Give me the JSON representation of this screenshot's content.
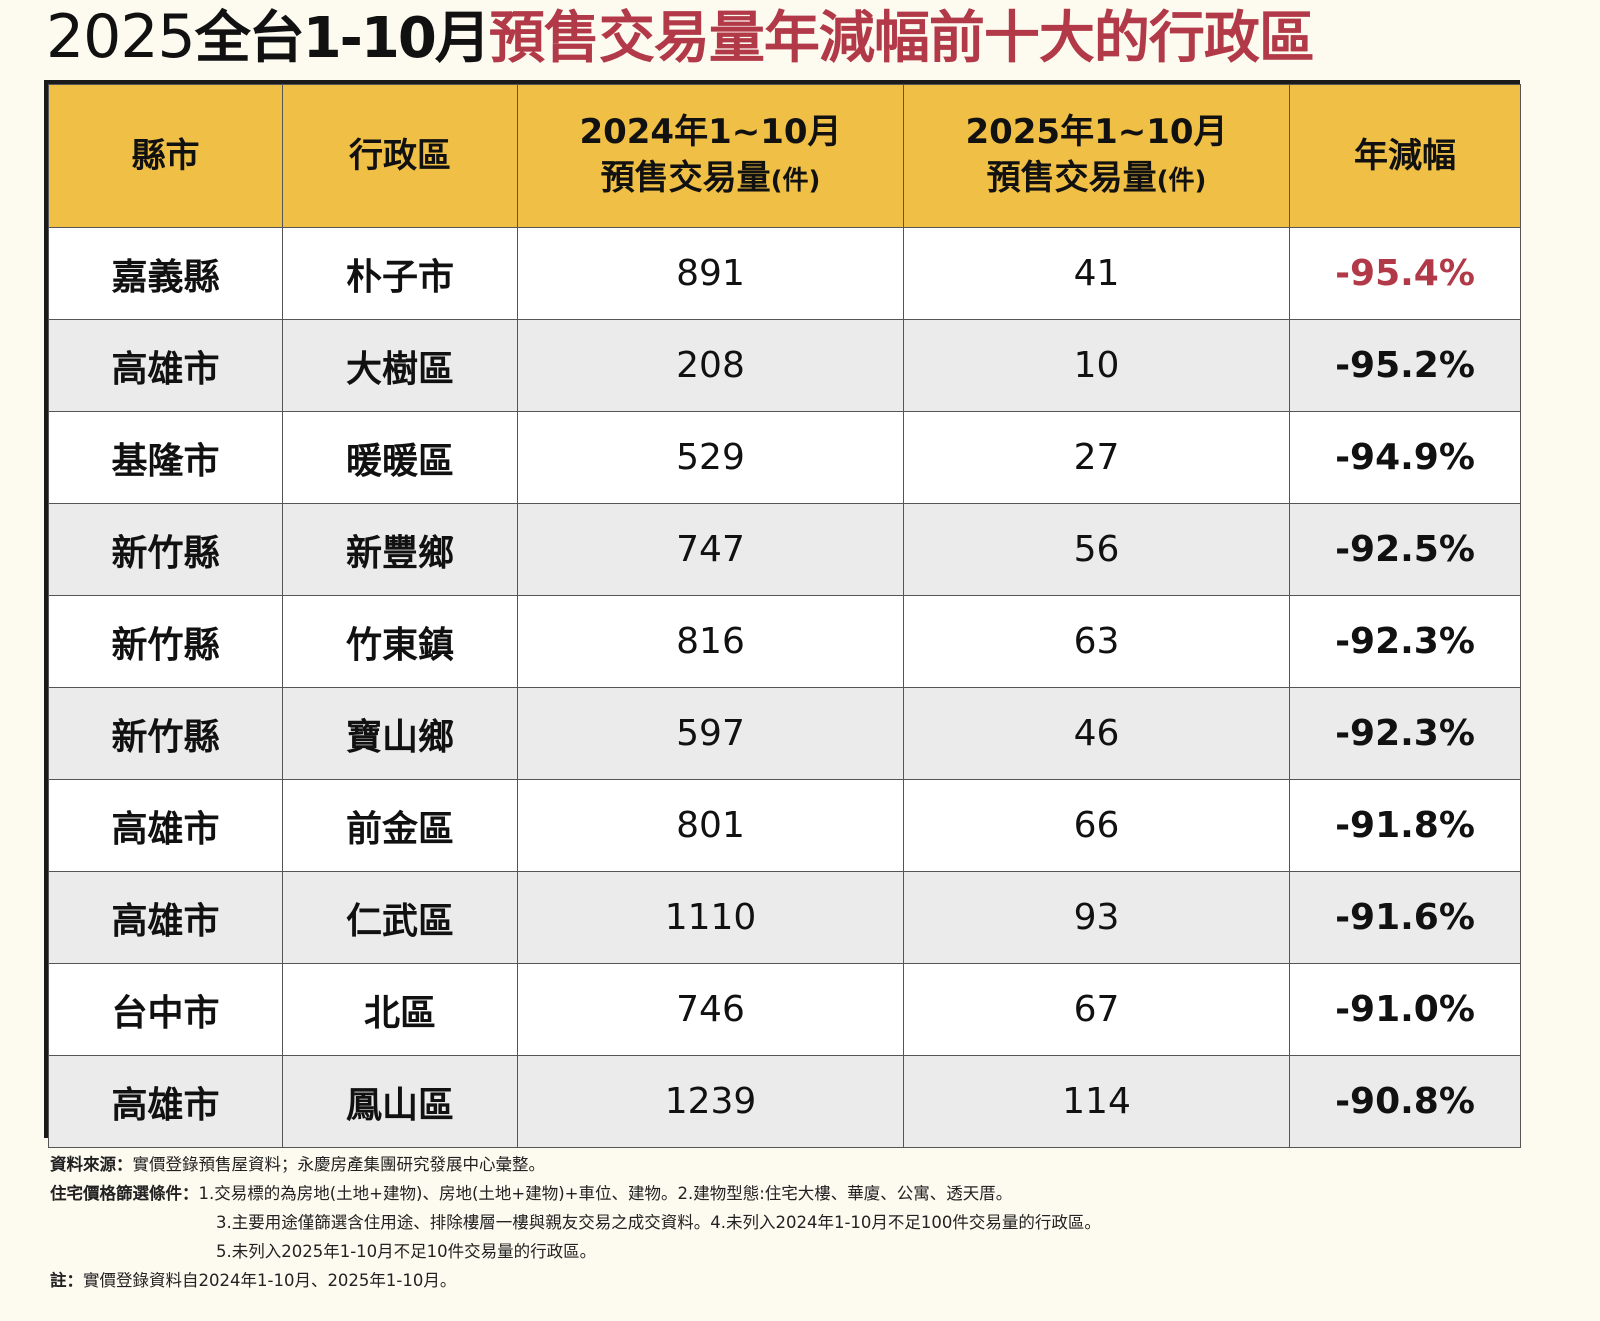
{
  "title": {
    "year": "2025",
    "part_a": "全台1-10月",
    "part_b": "預售交易量年減幅前十大的行政區"
  },
  "colors": {
    "header_bg": "#f0bf45",
    "accent_red": "#b23a48",
    "row_white": "#ffffff",
    "row_gray": "#ebebeb"
  },
  "table": {
    "headers": {
      "county": "縣市",
      "district": "行政區",
      "y2024_line1": "2024年1~10月",
      "y2024_line2": "預售交易量",
      "y2024_unit": "(件)",
      "y2025_line1": "2025年1~10月",
      "y2025_line2": "預售交易量",
      "y2025_unit": "(件)",
      "change": "年減幅"
    },
    "rows": [
      {
        "county": "嘉義縣",
        "district": "朴子市",
        "v2024": "891",
        "v2025": "41",
        "change": "-95.4%"
      },
      {
        "county": "高雄市",
        "district": "大樹區",
        "v2024": "208",
        "v2025": "10",
        "change": "-95.2%"
      },
      {
        "county": "基隆市",
        "district": "暖暖區",
        "v2024": "529",
        "v2025": "27",
        "change": "-94.9%"
      },
      {
        "county": "新竹縣",
        "district": "新豐鄉",
        "v2024": "747",
        "v2025": "56",
        "change": "-92.5%"
      },
      {
        "county": "新竹縣",
        "district": "竹東鎮",
        "v2024": "816",
        "v2025": "63",
        "change": "-92.3%"
      },
      {
        "county": "新竹縣",
        "district": "寶山鄉",
        "v2024": "597",
        "v2025": "46",
        "change": "-92.3%"
      },
      {
        "county": "高雄市",
        "district": "前金區",
        "v2024": "801",
        "v2025": "66",
        "change": "-91.8%"
      },
      {
        "county": "高雄市",
        "district": "仁武區",
        "v2024": "1110",
        "v2025": "93",
        "change": "-91.6%"
      },
      {
        "county": "台中市",
        "district": "北區",
        "v2024": "746",
        "v2025": "67",
        "change": "-91.0%"
      },
      {
        "county": "高雄市",
        "district": "鳳山區",
        "v2024": "1239",
        "v2025": "114",
        "change": "-90.8%"
      }
    ]
  },
  "chart_data": {
    "type": "table",
    "columns": [
      "縣市",
      "行政區",
      "2024年1~10月 預售交易量(件)",
      "2025年1~10月 預售交易量(件)",
      "年減幅"
    ],
    "rows": [
      [
        "嘉義縣",
        "朴子市",
        891,
        41,
        "-95.4%"
      ],
      [
        "高雄市",
        "大樹區",
        208,
        10,
        "-95.2%"
      ],
      [
        "基隆市",
        "暖暖區",
        529,
        27,
        "-94.9%"
      ],
      [
        "新竹縣",
        "新豐鄉",
        747,
        56,
        "-92.5%"
      ],
      [
        "新竹縣",
        "竹東鎮",
        816,
        63,
        "-92.3%"
      ],
      [
        "新竹縣",
        "寶山鄉",
        597,
        46,
        "-92.3%"
      ],
      [
        "高雄市",
        "前金區",
        801,
        66,
        "-91.8%"
      ],
      [
        "高雄市",
        "仁武區",
        1110,
        93,
        "-91.6%"
      ],
      [
        "台中市",
        "北區",
        746,
        67,
        "-91.0%"
      ],
      [
        "高雄市",
        "鳳山區",
        1239,
        114,
        "-90.8%"
      ]
    ]
  },
  "notes": {
    "source_label": "資料來源：",
    "source_text": "實價登錄預售屋資料；永慶房產集團研究發展中心彙整。",
    "criteria_label": "住宅價格篩選條件：",
    "criteria_line1": "1.交易標的為房地(土地+建物)、房地(土地+建物)+車位、建物。2.建物型態:住宅大樓、華廈、公寓、透天厝。",
    "criteria_line2": "3.主要用途僅篩選含住用途、排除樓層一樓與親友交易之成交資料。4.未列入2024年1-10月不足100件交易量的行政區。",
    "criteria_line3": "5.未列入2025年1-10月不足10件交易量的行政區。",
    "note_label": "註：",
    "note_text": "實價登錄資料自2024年1-10月、2025年1-10月。"
  }
}
